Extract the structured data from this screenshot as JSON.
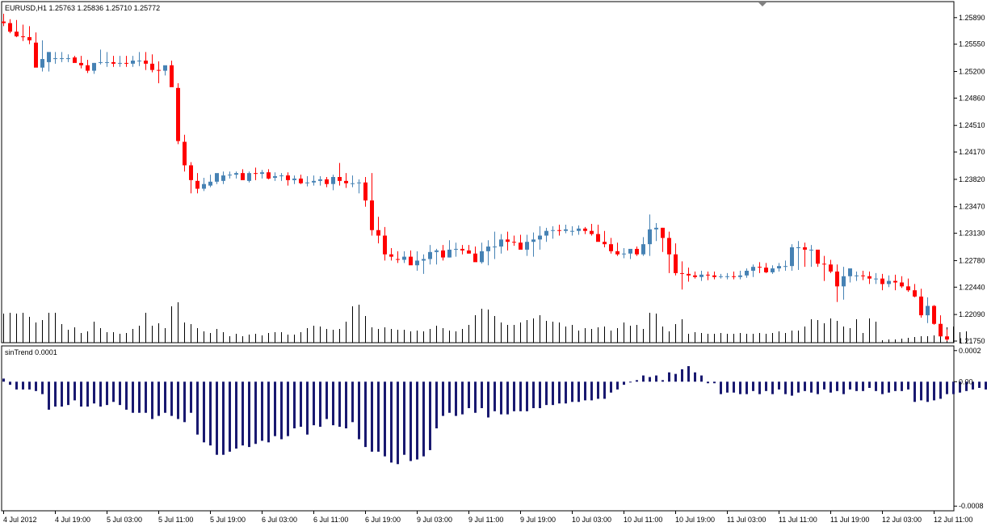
{
  "main_panel": {
    "label": "EURUSD,H1  1.25763 1.25836 1.25710 1.25772",
    "price_ticks": [
      "1.25890",
      "1.25550",
      "1.25200",
      "1.24860",
      "1.24510",
      "1.24170",
      "1.23820",
      "1.23470",
      "1.23130",
      "1.22780",
      "1.22440",
      "1.22090",
      "1.21750"
    ]
  },
  "indicator_panel": {
    "label": "sinTrend 0.0001",
    "value_ticks": [
      "0.0002",
      "0.00",
      "-0.0008"
    ]
  },
  "time_axis": {
    "labels": [
      "4 Jul 2012",
      "4 Jul 19:00",
      "5 Jul 03:00",
      "5 Jul 11:00",
      "5 Jul 19:00",
      "6 Jul 03:00",
      "6 Jul 11:00",
      "6 Jul 19:00",
      "9 Jul 03:00",
      "9 Jul 11:00",
      "9 Jul 19:00",
      "10 Jul 03:00",
      "10 Jul 11:00",
      "10 Jul 19:00",
      "11 Jul 03:00",
      "11 Jul 11:00",
      "11 Jul 19:00",
      "12 Jul 03:00",
      "12 Jul 11:00"
    ]
  },
  "colors": {
    "bull": "#4682b4",
    "bear": "#ff0000",
    "volume": "#000000",
    "indicator": "#191970",
    "grid_frame": "#000000",
    "scroll_marker": "#808080"
  },
  "chart_data": [
    {
      "type": "candlestick",
      "symbol": "EURUSD",
      "timeframe": "H1",
      "ylim": [
        1.2175,
        1.2595
      ],
      "series": [
        {
          "name": "open",
          "values": [
            1.2584,
            1.2582,
            1.2571,
            1.2565,
            1.2564,
            1.2557,
            1.2525,
            1.2532,
            1.2536,
            1.2536,
            1.2537,
            1.2538,
            1.2531,
            1.2528,
            1.2521,
            1.2531,
            1.2532,
            1.2532,
            1.253,
            1.2531,
            1.253,
            1.2534,
            1.2534,
            1.253,
            1.2522,
            1.2521,
            1.2528,
            1.2499,
            1.243,
            1.24,
            1.238,
            1.237,
            1.2374,
            1.2379,
            1.238,
            1.2387,
            1.2388,
            1.239,
            1.238,
            1.239,
            1.2389,
            1.2391,
            1.2384,
            1.2386,
            1.2387,
            1.2381,
            1.2383,
            1.2377,
            1.2378,
            1.238,
            1.2382,
            1.2376,
            1.2385,
            1.238,
            1.2377,
            1.2377,
            1.2378,
            1.2355,
            1.2317,
            1.231,
            1.2286,
            1.228,
            1.2279,
            1.2283,
            1.2272,
            1.2278,
            1.228,
            1.2289,
            1.2291,
            1.2282,
            1.2292,
            1.2293,
            1.2291,
            1.2287,
            1.2276,
            1.229,
            1.2296,
            1.2296,
            1.2305,
            1.2302,
            1.2301,
            1.2292,
            1.2302,
            1.2305,
            1.231,
            1.2316,
            1.2317,
            1.2316,
            1.2316,
            1.2316,
            1.2319,
            1.2316,
            1.2312,
            1.2302,
            1.2299,
            1.229,
            1.2286,
            1.2287,
            1.2293,
            1.2286,
            1.2299,
            1.2318,
            1.232,
            1.2307,
            1.2286,
            1.2262,
            1.2261,
            1.2259,
            1.2257,
            1.226,
            1.2259,
            1.2257,
            1.2258,
            1.2258,
            1.2257,
            1.2259,
            1.2265,
            1.227,
            1.2269,
            1.2263,
            1.2268,
            1.2271,
            1.2271,
            1.2295,
            1.2295,
            1.2292,
            1.2292,
            1.2274,
            1.2273,
            1.2264,
            1.2245,
            1.2258,
            1.2258,
            1.2259,
            1.2258,
            1.2255,
            1.2255,
            1.2248,
            1.2252,
            1.225,
            1.2245,
            1.224,
            1.2232,
            1.2208,
            1.222,
            1.2197,
            1.2181
          ]
        },
        {
          "name": "high",
          "values": [
            1.2594,
            1.2587,
            1.2586,
            1.258,
            1.2578,
            1.257,
            1.256,
            1.254,
            1.2545,
            1.2545,
            1.2542,
            1.254,
            1.254,
            1.2535,
            1.2531,
            1.2548,
            1.2545,
            1.254,
            1.254,
            1.254,
            1.254,
            1.2545,
            1.2545,
            1.2542,
            1.2533,
            1.2525,
            1.2534,
            1.2505,
            1.2439,
            1.2404,
            1.239,
            1.2384,
            1.2388,
            1.2389,
            1.2392,
            1.2392,
            1.2392,
            1.2395,
            1.2392,
            1.2397,
            1.2394,
            1.2395,
            1.2391,
            1.239,
            1.2391,
            1.2387,
            1.2388,
            1.2386,
            1.2387,
            1.2386,
            1.2385,
            1.2388,
            1.2403,
            1.239,
            1.2387,
            1.2382,
            1.2385,
            1.239,
            1.2334,
            1.2321,
            1.2294,
            1.229,
            1.229,
            1.2291,
            1.229,
            1.2286,
            1.2298,
            1.2293,
            1.2298,
            1.2304,
            1.2301,
            1.2298,
            1.2298,
            1.2296,
            1.2301,
            1.2304,
            1.2315,
            1.2312,
            1.2315,
            1.231,
            1.2311,
            1.2311,
            1.2314,
            1.2322,
            1.232,
            1.2322,
            1.2324,
            1.2324,
            1.2322,
            1.2323,
            1.2321,
            1.2325,
            1.2324,
            1.2316,
            1.2307,
            1.2301,
            1.2294,
            1.2292,
            1.2296,
            1.2308,
            1.2337,
            1.2326,
            1.232,
            1.2315,
            1.23,
            1.2277,
            1.2269,
            1.2264,
            1.2265,
            1.2264,
            1.2264,
            1.2261,
            1.2262,
            1.2264,
            1.2265,
            1.2268,
            1.2273,
            1.2276,
            1.2275,
            1.2272,
            1.2275,
            1.2278,
            1.2299,
            1.2303,
            1.2301,
            1.2298,
            1.229,
            1.2284,
            1.2279,
            1.2273,
            1.227,
            1.2264,
            1.2264,
            1.2265,
            1.2264,
            1.2262,
            1.2261,
            1.2259,
            1.226,
            1.2258,
            1.2255,
            1.2248,
            1.2242,
            1.2231,
            1.2221,
            1.2208,
            1.219
          ]
        },
        {
          "name": "low",
          "values": [
            1.2578,
            1.2569,
            1.2564,
            1.2559,
            1.2555,
            1.2541,
            1.252,
            1.252,
            1.253,
            1.2532,
            1.2532,
            1.2532,
            1.2524,
            1.2518,
            1.2517,
            1.2529,
            1.2526,
            1.2526,
            1.2526,
            1.2526,
            1.2526,
            1.2527,
            1.2522,
            1.2519,
            1.2505,
            1.2515,
            1.2518,
            1.2427,
            1.2392,
            1.2364,
            1.2364,
            1.2367,
            1.2372,
            1.2376,
            1.2376,
            1.2383,
            1.2383,
            1.2384,
            1.2378,
            1.2381,
            1.2383,
            1.2382,
            1.238,
            1.238,
            1.2374,
            1.2376,
            1.2376,
            1.2373,
            1.2374,
            1.2374,
            1.2372,
            1.2368,
            1.2374,
            1.2371,
            1.2372,
            1.2364,
            1.2347,
            1.231,
            1.23,
            1.2278,
            1.2278,
            1.2275,
            1.2275,
            1.2273,
            1.2265,
            1.2261,
            1.2273,
            1.2273,
            1.2278,
            1.2282,
            1.2283,
            1.2286,
            1.2287,
            1.228,
            1.2274,
            1.2272,
            1.228,
            1.2287,
            1.2291,
            1.2297,
            1.2293,
            1.2284,
            1.2283,
            1.2292,
            1.2302,
            1.2306,
            1.231,
            1.2313,
            1.231,
            1.2311,
            1.2312,
            1.231,
            1.2304,
            1.2295,
            1.2287,
            1.2284,
            1.2281,
            1.228,
            1.2284,
            1.2284,
            1.2284,
            1.2303,
            1.2289,
            1.2262,
            1.2259,
            1.2241,
            1.2251,
            1.2255,
            1.2252,
            1.2253,
            1.2254,
            1.2255,
            1.2254,
            1.2254,
            1.2254,
            1.2256,
            1.2257,
            1.2262,
            1.2262,
            1.2261,
            1.2264,
            1.2265,
            1.2265,
            1.2266,
            1.227,
            1.227,
            1.227,
            1.2252,
            1.2262,
            1.2225,
            1.2228,
            1.225,
            1.2252,
            1.2253,
            1.2248,
            1.2248,
            1.224,
            1.2244,
            1.224,
            1.2243,
            1.2238,
            1.2231,
            1.2205,
            1.2198,
            1.2196,
            1.2181,
            1.2175
          ]
        },
        {
          "name": "close",
          "values": [
            1.2582,
            1.2571,
            1.2565,
            1.2564,
            1.256,
            1.2525,
            1.2536,
            1.2545,
            1.2537,
            1.2537,
            1.2537,
            1.2531,
            1.2528,
            1.2521,
            1.2531,
            1.2532,
            1.2532,
            1.253,
            1.2531,
            1.253,
            1.2534,
            1.2534,
            1.253,
            1.2522,
            1.2521,
            1.2528,
            1.25,
            1.2431,
            1.24,
            1.2381,
            1.237,
            1.2376,
            1.2379,
            1.239,
            1.2387,
            1.2388,
            1.239,
            1.2381,
            1.239,
            1.2389,
            1.2391,
            1.2383,
            1.2386,
            1.2387,
            1.2381,
            1.2383,
            1.2377,
            1.2378,
            1.238,
            1.2382,
            1.2376,
            1.2385,
            1.238,
            1.2377,
            1.2377,
            1.2378,
            1.2355,
            1.2317,
            1.231,
            1.2286,
            1.2283,
            1.2279,
            1.2283,
            1.2272,
            1.2278,
            1.228,
            1.2289,
            1.2291,
            1.2282,
            1.2292,
            1.2293,
            1.2291,
            1.2287,
            1.2276,
            1.229,
            1.2296,
            1.2296,
            1.2305,
            1.2302,
            1.2301,
            1.2292,
            1.2302,
            1.2305,
            1.231,
            1.2316,
            1.2317,
            1.2316,
            1.2318,
            1.2316,
            1.2319,
            1.2316,
            1.2312,
            1.2302,
            1.2299,
            1.229,
            1.2286,
            1.2287,
            1.2293,
            1.2286,
            1.2299,
            1.2318,
            1.232,
            1.2307,
            1.2286,
            1.2262,
            1.2261,
            1.2259,
            1.2257,
            1.226,
            1.2259,
            1.2257,
            1.2258,
            1.2258,
            1.2257,
            1.2259,
            1.2265,
            1.227,
            1.2269,
            1.2263,
            1.2268,
            1.2271,
            1.2271,
            1.2295,
            1.2295,
            1.2292,
            1.2292,
            1.2274,
            1.2273,
            1.2264,
            1.2245,
            1.2258,
            1.2268,
            1.2259,
            1.2258,
            1.2255,
            1.2255,
            1.2248,
            1.2252,
            1.225,
            1.2245,
            1.224,
            1.2232,
            1.2208,
            1.222,
            1.2197,
            1.2181,
            1.2177
          ]
        },
        {
          "name": "volume",
          "values": [
            36,
            37,
            36,
            37,
            32,
            25,
            28,
            37,
            37,
            23,
            16,
            19,
            12,
            14,
            26,
            18,
            13,
            13,
            11,
            12,
            17,
            21,
            37,
            21,
            24,
            18,
            45,
            50,
            25,
            23,
            18,
            14,
            12,
            17,
            13,
            8,
            11,
            8,
            10,
            11,
            9,
            12,
            13,
            13,
            10,
            10,
            13,
            18,
            21,
            20,
            17,
            16,
            17,
            26,
            45,
            47,
            33,
            19,
            17,
            19,
            17,
            16,
            16,
            14,
            15,
            14,
            17,
            21,
            18,
            15,
            14,
            17,
            22,
            34,
            42,
            41,
            33,
            25,
            22,
            22,
            25,
            28,
            30,
            34,
            27,
            26,
            25,
            20,
            22,
            15,
            18,
            17,
            19,
            20,
            15,
            18,
            25,
            21,
            22,
            17,
            37,
            36,
            20,
            14,
            23,
            29,
            11,
            13,
            12,
            11,
            11,
            12,
            11,
            11,
            12,
            11,
            11,
            12,
            11,
            12,
            14,
            12,
            15,
            15,
            20,
            29,
            28,
            24,
            30,
            27,
            20,
            18,
            29,
            12,
            30,
            26,
            3,
            4,
            4,
            5,
            6,
            7,
            8,
            8,
            9,
            12,
            19,
            20,
            13,
            14
          ]
        }
      ]
    },
    {
      "type": "bar",
      "title": "sinTrend",
      "parameter": 0.0001,
      "ylim": [
        -0.00083,
        0.00023
      ],
      "values": [
        2e-05,
        -2e-05,
        -5e-05,
        -5e-05,
        -5e-05,
        -6e-05,
        -8e-05,
        -0.00018,
        -0.00016,
        -0.00016,
        -0.00015,
        -0.00012,
        -0.00016,
        -0.00016,
        -0.00014,
        -0.00016,
        -0.00015,
        -0.00013,
        -0.00015,
        -0.00018,
        -0.0002,
        -0.0002,
        -0.0002,
        -0.00024,
        -0.00022,
        -0.0002,
        -0.00022,
        -0.00024,
        -0.00026,
        -0.0002,
        -0.00034,
        -0.00039,
        -0.00041,
        -0.00047,
        -0.00047,
        -0.00045,
        -0.00043,
        -0.00041,
        -0.00042,
        -0.0004,
        -0.00038,
        -0.00039,
        -0.00035,
        -0.00037,
        -0.00035,
        -0.0003,
        -0.00029,
        -0.00034,
        -0.00028,
        -0.00029,
        -0.00024,
        -0.00028,
        -0.00029,
        -0.0003,
        -0.00026,
        -0.00037,
        -0.00042,
        -0.00045,
        -0.00045,
        -0.00048,
        -0.00052,
        -0.00053,
        -0.00047,
        -0.00051,
        -0.0005,
        -0.00048,
        -0.00044,
        -0.0003,
        -0.00022,
        -0.0002,
        -0.00022,
        -0.00021,
        -0.00017,
        -0.0002,
        -0.00017,
        -0.00023,
        -0.00019,
        -0.00021,
        -0.00021,
        -0.00019,
        -0.00019,
        -0.00019,
        -0.00017,
        -0.00017,
        -0.00015,
        -0.00015,
        -0.00014,
        -0.00014,
        -0.00013,
        -0.00013,
        -0.00012,
        -0.00012,
        -0.00011,
        -0.00011,
        -7e-05,
        -5e-05,
        -2e-05,
        0.0,
        1e-05,
        4e-05,
        3e-05,
        4e-05,
        1e-05,
        6e-05,
        5e-05,
        8e-05,
        0.0001,
        6e-05,
        4e-05,
        -1e-05,
        -1e-05,
        -8e-05,
        -7e-05,
        -7e-05,
        -8e-05,
        -8e-05,
        -6e-05,
        -8e-05,
        -6e-05,
        -8e-05,
        -5e-05,
        -8e-05,
        -9e-05,
        -7e-05,
        -6e-05,
        -7e-05,
        -8e-05,
        -5e-05,
        -7e-05,
        -6e-05,
        -8e-05,
        -5e-05,
        -6e-05,
        -6e-05,
        -4e-05,
        -6e-05,
        -8e-05,
        -7e-05,
        -6e-05,
        -6e-05,
        -5e-05,
        -0.00013,
        -0.00012,
        -0.00013,
        -0.00012,
        -0.00011,
        -8e-05,
        -8e-05,
        -7e-05,
        -6e-05,
        -5e-05,
        -4e-05,
        -5e-05,
        -0.00012
      ]
    }
  ]
}
